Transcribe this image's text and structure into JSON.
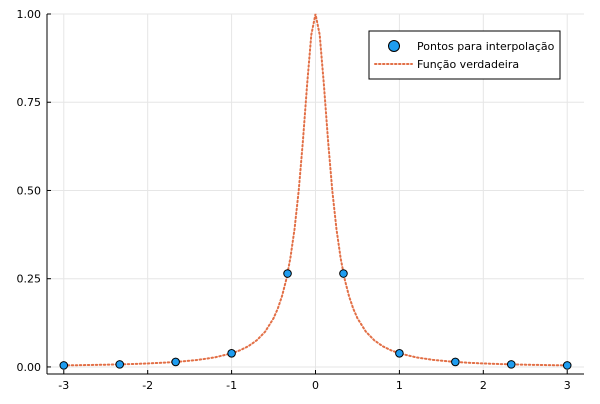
{
  "chart_data": {
    "type": "scatter",
    "title": "",
    "xlabel": "",
    "ylabel": "",
    "xlim": [
      -3.2,
      3.2
    ],
    "ylim": [
      -0.02,
      1.0
    ],
    "grid": true,
    "legend_position": "top-right",
    "x_ticks": [
      {
        "value": -3,
        "label": "-3"
      },
      {
        "value": -2,
        "label": "-2"
      },
      {
        "value": -1,
        "label": "-1"
      },
      {
        "value": 0,
        "label": "0"
      },
      {
        "value": 1,
        "label": "1"
      },
      {
        "value": 2,
        "label": "2"
      },
      {
        "value": 3,
        "label": "3"
      }
    ],
    "y_ticks": [
      {
        "value": 0.0,
        "label": "0.00"
      },
      {
        "value": 0.25,
        "label": "0.25"
      },
      {
        "value": 0.5,
        "label": "0.50"
      },
      {
        "value": 0.75,
        "label": "0.75"
      },
      {
        "value": 1.0,
        "label": "1.00"
      }
    ],
    "series": [
      {
        "name": "Pontos para interpolação",
        "kind": "scatter",
        "color": "#1f9df0",
        "edge_color": "#000000",
        "x": [
          -3.0,
          -2.3333,
          -1.6667,
          -1.0,
          -0.3333,
          0.3333,
          1.0,
          1.6667,
          2.3333,
          3.0
        ],
        "y": [
          0.0044,
          0.0073,
          0.0142,
          0.0385,
          0.2647,
          0.2647,
          0.0385,
          0.0142,
          0.0073,
          0.0044
        ]
      },
      {
        "name": "Função verdadeira",
        "kind": "line",
        "style": "dotted",
        "color": "#e26f46",
        "x": [
          -3.0,
          -2.8,
          -2.6,
          -2.4,
          -2.2,
          -2.0,
          -1.8,
          -1.6,
          -1.4,
          -1.2,
          -1.0,
          -0.9,
          -0.8,
          -0.7,
          -0.6,
          -0.5,
          -0.45,
          -0.4,
          -0.35,
          -0.3,
          -0.25,
          -0.2,
          -0.15,
          -0.1,
          -0.05,
          0.0,
          0.05,
          0.1,
          0.15,
          0.2,
          0.25,
          0.3,
          0.35,
          0.4,
          0.45,
          0.5,
          0.6,
          0.7,
          0.8,
          0.9,
          1.0,
          1.2,
          1.4,
          1.6,
          1.8,
          2.0,
          2.2,
          2.4,
          2.6,
          2.8,
          3.0
        ],
        "y": [
          0.0044,
          0.0051,
          0.0059,
          0.0069,
          0.0082,
          0.0099,
          0.0122,
          0.0154,
          0.02,
          0.0271,
          0.0385,
          0.0471,
          0.0588,
          0.0755,
          0.1,
          0.1379,
          0.165,
          0.2,
          0.2462,
          0.3077,
          0.3902,
          0.5,
          0.64,
          0.8,
          0.9412,
          1.0,
          0.9412,
          0.8,
          0.64,
          0.5,
          0.3902,
          0.3077,
          0.2462,
          0.2,
          0.165,
          0.1379,
          0.1,
          0.0755,
          0.0588,
          0.0471,
          0.0385,
          0.0271,
          0.02,
          0.0154,
          0.0122,
          0.0099,
          0.0082,
          0.0069,
          0.0059,
          0.0051,
          0.0044
        ]
      }
    ]
  },
  "legend": {
    "items": [
      {
        "label": "Pontos para interpolação",
        "kind": "marker",
        "color": "#1f9df0"
      },
      {
        "label": "Função verdadeira",
        "kind": "line",
        "color": "#e26f46"
      }
    ]
  }
}
